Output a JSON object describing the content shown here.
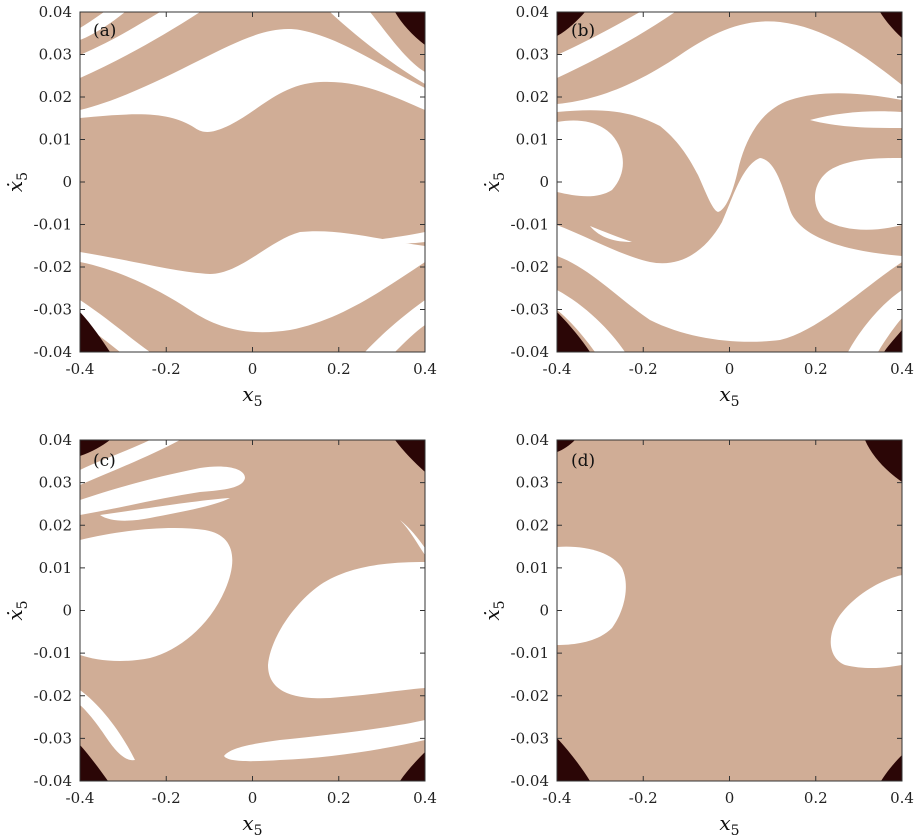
{
  "colors": {
    "basin_main": "#d0ad96",
    "basin_other": "#ffffff",
    "basin_dark": "#2b0606",
    "axes": "#333333"
  },
  "chart_data": [
    {
      "type": "heatmap",
      "panel_label": "(a)",
      "xlabel": "x",
      "xlabel_sub": "5",
      "ylabel": "ẋ",
      "ylabel_sub": "5",
      "xlim": [
        -0.4,
        0.4
      ],
      "ylim": [
        -0.04,
        0.04
      ],
      "xticks": [
        "-0.4",
        "-0.2",
        "0",
        "0.2",
        "0.4"
      ],
      "yticks": [
        "-0.04",
        "-0.03",
        "-0.02",
        "-0.01",
        "0",
        "0.01",
        "0.02",
        "0.03",
        "0.04"
      ]
    },
    {
      "type": "heatmap",
      "panel_label": "(b)",
      "xlabel": "x",
      "xlabel_sub": "5",
      "ylabel": "ẋ",
      "ylabel_sub": "5",
      "xlim": [
        -0.4,
        0.4
      ],
      "ylim": [
        -0.04,
        0.04
      ],
      "xticks": [
        "-0.4",
        "-0.2",
        "0",
        "0.2",
        "0.4"
      ],
      "yticks": [
        "-0.04",
        "-0.03",
        "-0.02",
        "-0.01",
        "0",
        "0.01",
        "0.02",
        "0.03",
        "0.04"
      ]
    },
    {
      "type": "heatmap",
      "panel_label": "(c)",
      "xlabel": "x",
      "xlabel_sub": "5",
      "ylabel": "ẋ",
      "ylabel_sub": "5",
      "xlim": [
        -0.4,
        0.4
      ],
      "ylim": [
        -0.04,
        0.04
      ],
      "xticks": [
        "-0.4",
        "-0.2",
        "0",
        "0.2",
        "0.4"
      ],
      "yticks": [
        "-0.04",
        "-0.03",
        "-0.02",
        "-0.01",
        "0",
        "0.01",
        "0.02",
        "0.03",
        "0.04"
      ]
    },
    {
      "type": "heatmap",
      "panel_label": "(d)",
      "xlabel": "x",
      "xlabel_sub": "5",
      "ylabel": "ẋ",
      "ylabel_sub": "5",
      "xlim": [
        -0.4,
        0.4
      ],
      "ylim": [
        -0.04,
        0.04
      ],
      "xticks": [
        "-0.4",
        "-0.2",
        "0",
        "0.2",
        "0.4"
      ],
      "yticks": [
        "-0.04",
        "-0.03",
        "-0.02",
        "-0.01",
        "0",
        "0.01",
        "0.02",
        "0.03",
        "0.04"
      ]
    }
  ]
}
